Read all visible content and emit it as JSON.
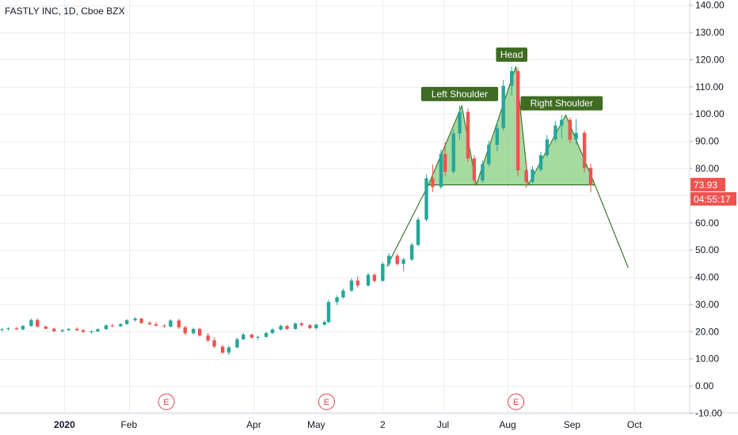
{
  "chart_data": {
    "type": "candlestick",
    "title": "FASTLY INC, 1D, Cboe BZX",
    "y_axis": {
      "range": [
        -10,
        145
      ],
      "tick_labels": [
        "140.00",
        "130.00",
        "120.00",
        "110.00",
        "100.00",
        "90.00",
        "80.00",
        "70.00",
        "60.00",
        "50.00",
        "40.00",
        "30.00",
        "20.00",
        "10.00",
        "0.00",
        "-10.00"
      ],
      "ticks": [
        140,
        130,
        120,
        110,
        100,
        90,
        80,
        70,
        60,
        50,
        40,
        30,
        20,
        10,
        0,
        -10
      ]
    },
    "x_axis": {
      "range": [
        "2019-12-01",
        "2020-10-31"
      ],
      "tick_labels": [
        {
          "label": "2020",
          "date": "2020-01-01",
          "bold": true
        },
        {
          "label": "Feb",
          "date": "2020-02-01",
          "bold": false
        },
        {
          "label": "Apr",
          "date": "2020-04-01",
          "bold": false
        },
        {
          "label": "May",
          "date": "2020-05-01",
          "bold": false
        },
        {
          "label": "2",
          "date": "2020-06-02",
          "bold": false
        },
        {
          "label": "Jul",
          "date": "2020-07-01",
          "bold": false
        },
        {
          "label": "Aug",
          "date": "2020-08-01",
          "bold": false
        },
        {
          "label": "Sep",
          "date": "2020-09-01",
          "bold": false
        },
        {
          "label": "Oct",
          "date": "2020-10-01",
          "bold": false
        }
      ]
    },
    "grid": true,
    "colors": {
      "up": "#26a69a",
      "down": "#ef5350",
      "pattern_fill": "#8fd18a",
      "pattern_line": "#3f7a2e",
      "label_bg": "#3f6b23",
      "earnings": "#e0434b",
      "axis_text": "#131722",
      "grid": "#e9edf2"
    },
    "price_badge": {
      "value": "73.93",
      "countdown": "04:55:17",
      "price": 73.93,
      "color": "#ef5350"
    },
    "earnings_markers": [
      {
        "label": "E",
        "date": "2020-02-19"
      },
      {
        "label": "E",
        "date": "2020-05-06"
      },
      {
        "label": "E",
        "date": "2020-08-05"
      }
    ],
    "series": [
      {
        "type": "candlestick",
        "ohlc": [
          [
            "2019-12-02",
            20.6,
            21.3,
            20.1,
            20.9
          ],
          [
            "2019-12-05",
            20.9,
            21.6,
            20.4,
            21.2
          ],
          [
            "2019-12-09",
            21.2,
            21.8,
            20.6,
            20.8
          ],
          [
            "2019-12-12",
            20.8,
            22.4,
            20.5,
            22.1
          ],
          [
            "2019-12-16",
            22.1,
            24.8,
            21.8,
            24.3
          ],
          [
            "2019-12-19",
            24.3,
            24.9,
            21.5,
            21.9
          ],
          [
            "2019-12-23",
            21.9,
            22.2,
            20.8,
            21.1
          ],
          [
            "2019-12-27",
            21.1,
            21.5,
            19.8,
            20.2
          ],
          [
            "2019-12-31",
            20.2,
            20.9,
            19.7,
            20.6
          ],
          [
            "2020-01-03",
            20.6,
            21.4,
            20.1,
            21.0
          ],
          [
            "2020-01-07",
            21.0,
            21.6,
            20.3,
            20.5
          ],
          [
            "2020-01-10",
            20.5,
            21.0,
            19.6,
            19.9
          ],
          [
            "2020-01-14",
            19.9,
            20.5,
            19.3,
            20.1
          ],
          [
            "2020-01-17",
            20.1,
            21.2,
            19.9,
            20.9
          ],
          [
            "2020-01-21",
            20.9,
            22.6,
            20.6,
            22.3
          ],
          [
            "2020-01-24",
            22.3,
            22.9,
            21.6,
            22.0
          ],
          [
            "2020-01-28",
            22.0,
            23.1,
            21.7,
            22.8
          ],
          [
            "2020-01-31",
            22.8,
            24.6,
            22.5,
            24.2
          ],
          [
            "2020-02-04",
            24.2,
            25.4,
            23.7,
            24.8
          ],
          [
            "2020-02-07",
            24.8,
            25.1,
            22.9,
            23.2
          ],
          [
            "2020-02-11",
            23.2,
            23.9,
            22.4,
            22.7
          ],
          [
            "2020-02-14",
            22.7,
            23.5,
            21.9,
            22.2
          ],
          [
            "2020-02-18",
            22.2,
            22.8,
            21.5,
            21.9
          ],
          [
            "2020-02-21",
            21.9,
            24.6,
            21.6,
            24.1
          ],
          [
            "2020-02-25",
            24.1,
            24.8,
            21.0,
            21.6
          ],
          [
            "2020-02-28",
            21.6,
            22.1,
            18.8,
            19.4
          ],
          [
            "2020-03-03",
            19.4,
            21.5,
            19.0,
            21.0
          ],
          [
            "2020-03-06",
            21.0,
            21.4,
            18.2,
            18.6
          ],
          [
            "2020-03-10",
            18.6,
            19.5,
            16.2,
            16.8
          ],
          [
            "2020-03-13",
            16.8,
            17.9,
            13.9,
            14.5
          ],
          [
            "2020-03-17",
            14.5,
            15.2,
            11.8,
            12.3
          ],
          [
            "2020-03-20",
            12.3,
            14.9,
            11.5,
            14.2
          ],
          [
            "2020-03-24",
            14.2,
            17.8,
            13.9,
            17.2
          ],
          [
            "2020-03-27",
            17.2,
            19.6,
            16.8,
            18.9
          ],
          [
            "2020-03-31",
            18.9,
            19.3,
            17.4,
            17.8
          ],
          [
            "2020-04-03",
            17.8,
            18.5,
            16.9,
            18.1
          ],
          [
            "2020-04-07",
            18.1,
            19.9,
            17.8,
            19.5
          ],
          [
            "2020-04-10",
            19.5,
            21.3,
            19.1,
            20.8
          ],
          [
            "2020-04-14",
            20.8,
            22.6,
            20.4,
            22.1
          ],
          [
            "2020-04-17",
            22.1,
            22.5,
            20.6,
            21.0
          ],
          [
            "2020-04-21",
            21.0,
            23.4,
            20.7,
            23.0
          ],
          [
            "2020-04-24",
            23.0,
            23.6,
            21.9,
            22.4
          ],
          [
            "2020-04-28",
            22.4,
            22.9,
            20.9,
            21.3
          ],
          [
            "2020-05-01",
            21.3,
            22.9,
            20.8,
            22.6
          ],
          [
            "2020-05-05",
            22.6,
            24.1,
            22.2,
            23.5
          ],
          [
            "2020-05-07",
            23.5,
            31.8,
            23.2,
            30.9
          ],
          [
            "2020-05-11",
            30.9,
            33.4,
            29.8,
            32.6
          ],
          [
            "2020-05-14",
            32.6,
            35.8,
            32.1,
            35.1
          ],
          [
            "2020-05-18",
            35.1,
            39.6,
            34.6,
            38.8
          ],
          [
            "2020-05-21",
            38.8,
            40.3,
            36.2,
            37.0
          ],
          [
            "2020-05-26",
            37.0,
            41.6,
            36.5,
            40.9
          ],
          [
            "2020-05-29",
            40.9,
            41.5,
            38.1,
            38.7
          ],
          [
            "2020-06-02",
            38.7,
            45.6,
            38.4,
            44.9
          ],
          [
            "2020-06-05",
            44.9,
            48.8,
            44.0,
            47.9
          ],
          [
            "2020-06-09",
            47.9,
            48.6,
            44.2,
            44.9
          ],
          [
            "2020-06-12",
            44.9,
            47.2,
            42.3,
            46.5
          ],
          [
            "2020-06-16",
            46.5,
            52.7,
            46.0,
            51.9
          ],
          [
            "2020-06-19",
            51.9,
            62.1,
            51.4,
            61.2
          ],
          [
            "2020-06-23",
            61.2,
            77.8,
            60.5,
            76.4
          ],
          [
            "2020-06-26",
            76.4,
            81.5,
            71.3,
            73.2
          ],
          [
            "2020-06-30",
            73.2,
            86.9,
            72.5,
            85.3
          ],
          [
            "2020-07-02",
            85.3,
            89.6,
            77.1,
            78.8
          ],
          [
            "2020-07-06",
            78.8,
            94.3,
            78.1,
            92.9
          ],
          [
            "2020-07-09",
            92.9,
            103.2,
            90.5,
            100.8
          ],
          [
            "2020-07-13",
            100.8,
            102.1,
            82.4,
            83.7
          ],
          [
            "2020-07-16",
            83.7,
            84.9,
            73.8,
            75.6
          ],
          [
            "2020-07-20",
            75.6,
            82.9,
            74.8,
            81.6
          ],
          [
            "2020-07-23",
            81.6,
            90.2,
            80.9,
            88.7
          ],
          [
            "2020-07-27",
            88.7,
            97.1,
            86.3,
            94.8
          ],
          [
            "2020-07-30",
            94.8,
            112.6,
            93.9,
            110.4
          ],
          [
            "2020-08-03",
            110.4,
            117.5,
            106.8,
            115.8
          ],
          [
            "2020-08-06",
            115.8,
            117.0,
            77.2,
            79.3
          ],
          [
            "2020-08-10",
            79.3,
            82.6,
            72.9,
            75.1
          ],
          [
            "2020-08-13",
            75.1,
            80.8,
            74.3,
            79.6
          ],
          [
            "2020-08-17",
            79.6,
            86.1,
            78.8,
            84.9
          ],
          [
            "2020-08-20",
            84.9,
            92.3,
            84.1,
            90.7
          ],
          [
            "2020-08-24",
            90.7,
            97.4,
            89.8,
            95.8
          ],
          [
            "2020-08-27",
            95.8,
            99.6,
            91.2,
            97.9
          ],
          [
            "2020-08-31",
            97.9,
            98.8,
            89.4,
            90.6
          ],
          [
            "2020-09-03",
            90.6,
            98.2,
            88.7,
            93.1
          ],
          [
            "2020-09-07",
            93.1,
            94.0,
            78.6,
            80.2
          ],
          [
            "2020-09-10",
            80.2,
            81.7,
            71.2,
            73.93
          ]
        ]
      }
    ],
    "pattern": {
      "name": "Head and Shoulders",
      "neckline": 74,
      "labels": [
        {
          "text": "Left Shoulder",
          "date": "2020-07-09",
          "price": 103
        },
        {
          "text": "Head",
          "date": "2020-08-03",
          "price": 117.5
        },
        {
          "text": "Right Shoulder",
          "date": "2020-08-27",
          "price": 99.6
        }
      ],
      "triangles": [
        [
          [
            "2020-06-24",
            74
          ],
          [
            "2020-07-10",
            103
          ],
          [
            "2020-07-17",
            74
          ]
        ],
        [
          [
            "2020-07-17",
            74
          ],
          [
            "2020-08-05",
            117.5
          ],
          [
            "2020-08-11",
            74
          ]
        ],
        [
          [
            "2020-08-11",
            74
          ],
          [
            "2020-08-29",
            99.6
          ],
          [
            "2020-09-12",
            74
          ]
        ]
      ],
      "neckline_segments": [
        [
          [
            "2020-06-24",
            74
          ],
          [
            "2020-09-12",
            74
          ]
        ]
      ],
      "projection_lines": [
        [
          [
            "2020-06-04",
            44
          ],
          [
            "2020-06-24",
            74
          ]
        ],
        [
          [
            "2020-09-12",
            74
          ],
          [
            "2020-09-28",
            43.5
          ]
        ]
      ]
    }
  }
}
